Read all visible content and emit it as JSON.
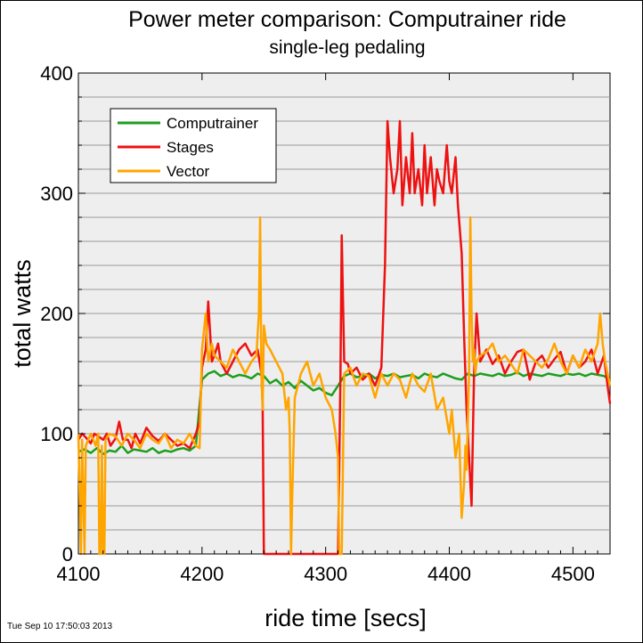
{
  "chart_data": {
    "type": "line",
    "title": "Power meter comparison: Computrainer ride",
    "subtitle": "single-leg pedaling",
    "xlabel": "ride time [secs]",
    "ylabel": "total watts",
    "xlim": [
      4100,
      4530
    ],
    "ylim": [
      0,
      400
    ],
    "xticks": [
      4100,
      4200,
      4300,
      4400,
      4500
    ],
    "yticks": [
      0,
      100,
      200,
      300,
      400
    ],
    "grid": true,
    "legend_position": "top-left",
    "timestamp": "Tue Sep 10 17:50:03 2013",
    "series": [
      {
        "name": "Computrainer",
        "color": "#1e9e1e",
        "x": [
          4100,
          4105,
          4110,
          4115,
          4120,
          4125,
          4130,
          4135,
          4140,
          4145,
          4150,
          4155,
          4160,
          4165,
          4170,
          4175,
          4180,
          4185,
          4190,
          4195,
          4200,
          4205,
          4210,
          4215,
          4220,
          4225,
          4230,
          4235,
          4240,
          4245,
          4250,
          4255,
          4260,
          4265,
          4270,
          4275,
          4280,
          4285,
          4290,
          4295,
          4300,
          4305,
          4310,
          4315,
          4320,
          4325,
          4330,
          4335,
          4340,
          4345,
          4350,
          4355,
          4360,
          4365,
          4370,
          4375,
          4380,
          4385,
          4390,
          4395,
          4400,
          4405,
          4410,
          4415,
          4420,
          4425,
          4430,
          4435,
          4440,
          4445,
          4450,
          4455,
          4460,
          4465,
          4470,
          4475,
          4480,
          4485,
          4490,
          4495,
          4500,
          4505,
          4510,
          4515,
          4520,
          4525,
          4530
        ],
        "y": [
          85,
          87,
          84,
          88,
          83,
          86,
          85,
          90,
          84,
          87,
          86,
          85,
          88,
          84,
          86,
          85,
          87,
          88,
          86,
          90,
          145,
          150,
          152,
          148,
          150,
          147,
          149,
          148,
          146,
          150,
          148,
          142,
          145,
          140,
          143,
          138,
          144,
          140,
          136,
          138,
          134,
          132,
          140,
          148,
          150,
          147,
          148,
          150,
          146,
          149,
          148,
          150,
          147,
          148,
          149,
          146,
          150,
          148,
          147,
          150,
          148,
          146,
          145,
          150,
          148,
          150,
          149,
          148,
          150,
          148,
          149,
          151,
          148,
          150,
          149,
          148,
          150,
          149,
          148,
          150,
          149,
          150,
          148,
          150,
          149,
          148,
          145
        ]
      },
      {
        "name": "Stages",
        "color": "#ee1111",
        "x": [
          4100,
          4103,
          4106,
          4110,
          4113,
          4116,
          4120,
          4123,
          4126,
          4130,
          4133,
          4136,
          4140,
          4143,
          4146,
          4150,
          4155,
          4160,
          4165,
          4170,
          4175,
          4180,
          4185,
          4190,
          4195,
          4198,
          4200,
          4203,
          4205,
          4208,
          4210,
          4213,
          4215,
          4220,
          4225,
          4230,
          4235,
          4240,
          4245,
          4248,
          4249,
          4250,
          4270,
          4290,
          4310,
          4312,
          4313,
          4315,
          4318,
          4320,
          4325,
          4330,
          4335,
          4340,
          4345,
          4348,
          4350,
          4352,
          4355,
          4358,
          4360,
          4362,
          4365,
          4368,
          4370,
          4372,
          4375,
          4378,
          4380,
          4382,
          4385,
          4388,
          4390,
          4392,
          4395,
          4398,
          4400,
          4402,
          4405,
          4407,
          4410,
          4412,
          4414,
          4416,
          4418,
          4420,
          4422,
          4425,
          4430,
          4435,
          4440,
          4445,
          4450,
          4455,
          4460,
          4465,
          4470,
          4475,
          4480,
          4485,
          4490,
          4495,
          4500,
          4505,
          4510,
          4515,
          4520,
          4525,
          4528,
          4530
        ],
        "y": [
          95,
          100,
          97,
          92,
          100,
          98,
          95,
          100,
          90,
          96,
          110,
          95,
          95,
          88,
          100,
          92,
          105,
          98,
          94,
          100,
          95,
          90,
          92,
          88,
          100,
          110,
          155,
          170,
          210,
          160,
          165,
          175,
          160,
          150,
          160,
          170,
          175,
          165,
          170,
          150,
          125,
          0,
          0,
          0,
          0,
          150,
          265,
          160,
          158,
          150,
          155,
          145,
          150,
          140,
          155,
          240,
          360,
          330,
          300,
          320,
          360,
          290,
          330,
          300,
          350,
          300,
          320,
          290,
          340,
          300,
          330,
          290,
          320,
          310,
          300,
          340,
          310,
          300,
          330,
          290,
          250,
          180,
          120,
          80,
          40,
          150,
          200,
          160,
          170,
          158,
          165,
          150,
          160,
          168,
          170,
          145,
          160,
          165,
          155,
          162,
          168,
          150,
          165,
          155,
          160,
          170,
          150,
          165,
          140,
          125
        ]
      },
      {
        "name": "Vector",
        "color": "#ffa500",
        "x": [
          4100,
          4102,
          4103,
          4105,
          4106,
          4108,
          4110,
          4112,
          4114,
          4116,
          4117,
          4118,
          4119,
          4120,
          4121,
          4122,
          4125,
          4130,
          4135,
          4140,
          4145,
          4150,
          4155,
          4160,
          4165,
          4170,
          4175,
          4180,
          4185,
          4190,
          4195,
          4198,
          4200,
          4203,
          4205,
          4208,
          4210,
          4215,
          4220,
          4225,
          4230,
          4235,
          4240,
          4244,
          4246,
          4247,
          4248,
          4249,
          4250,
          4252,
          4255,
          4260,
          4265,
          4268,
          4270,
          4271,
          4272,
          4273,
          4275,
          4280,
          4285,
          4290,
          4295,
          4300,
          4305,
          4308,
          4310,
          4311,
          4312,
          4313,
          4315,
          4320,
          4325,
          4330,
          4335,
          4340,
          4345,
          4350,
          4355,
          4360,
          4365,
          4370,
          4375,
          4380,
          4385,
          4390,
          4395,
          4400,
          4402,
          4405,
          4408,
          4410,
          4412,
          4413,
          4414,
          4415,
          4416,
          4417,
          4418,
          4419,
          4420,
          4421,
          4422,
          4425,
          4430,
          4435,
          4440,
          4445,
          4450,
          4455,
          4460,
          4465,
          4470,
          4475,
          4480,
          4485,
          4490,
          4495,
          4500,
          4505,
          4510,
          4515,
          4520,
          4522,
          4524,
          4526,
          4528,
          4530
        ],
        "y": [
          100,
          0,
          95,
          0,
          90,
          95,
          100,
          95,
          90,
          100,
          0,
          0,
          90,
          0,
          0,
          95,
          100,
          98,
          90,
          100,
          95,
          88,
          100,
          95,
          92,
          100,
          88,
          95,
          92,
          100,
          90,
          88,
          170,
          200,
          160,
          175,
          165,
          160,
          155,
          170,
          160,
          150,
          160,
          165,
          200,
          280,
          150,
          120,
          190,
          175,
          170,
          160,
          150,
          120,
          130,
          100,
          0,
          50,
          130,
          150,
          160,
          140,
          150,
          130,
          120,
          100,
          80,
          0,
          0,
          0,
          150,
          155,
          140,
          150,
          148,
          130,
          150,
          140,
          150,
          145,
          130,
          150,
          140,
          135,
          150,
          120,
          130,
          100,
          120,
          80,
          100,
          30,
          60,
          90,
          70,
          110,
          150,
          280,
          200,
          160,
          170,
          150,
          160,
          165,
          168,
          175,
          160,
          165,
          158,
          150,
          170,
          165,
          160,
          155,
          162,
          175,
          160,
          150,
          165,
          155,
          170,
          160,
          175,
          200,
          175,
          160,
          150,
          140
        ]
      }
    ]
  }
}
